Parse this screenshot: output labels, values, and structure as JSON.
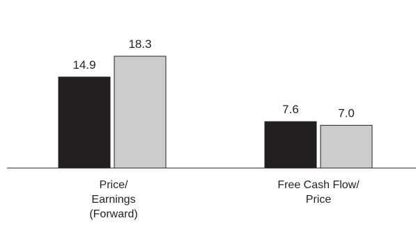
{
  "chart_data": {
    "type": "bar",
    "categories": [
      [
        "Price/",
        "Earnings",
        "(Forward)"
      ],
      [
        "Free Cash Flow/",
        "Price"
      ]
    ],
    "series": [
      {
        "values": [
          14.9,
          7.6
        ],
        "color": "#231f20"
      },
      {
        "values": [
          18.3,
          7.0
        ],
        "color": "#cccccc"
      }
    ],
    "value_labels": [
      [
        "14.9",
        "7.6"
      ],
      [
        "18.3",
        "7.0"
      ]
    ],
    "ylim": [
      0,
      20
    ],
    "legend": "none",
    "grid": false,
    "baseline": true
  }
}
